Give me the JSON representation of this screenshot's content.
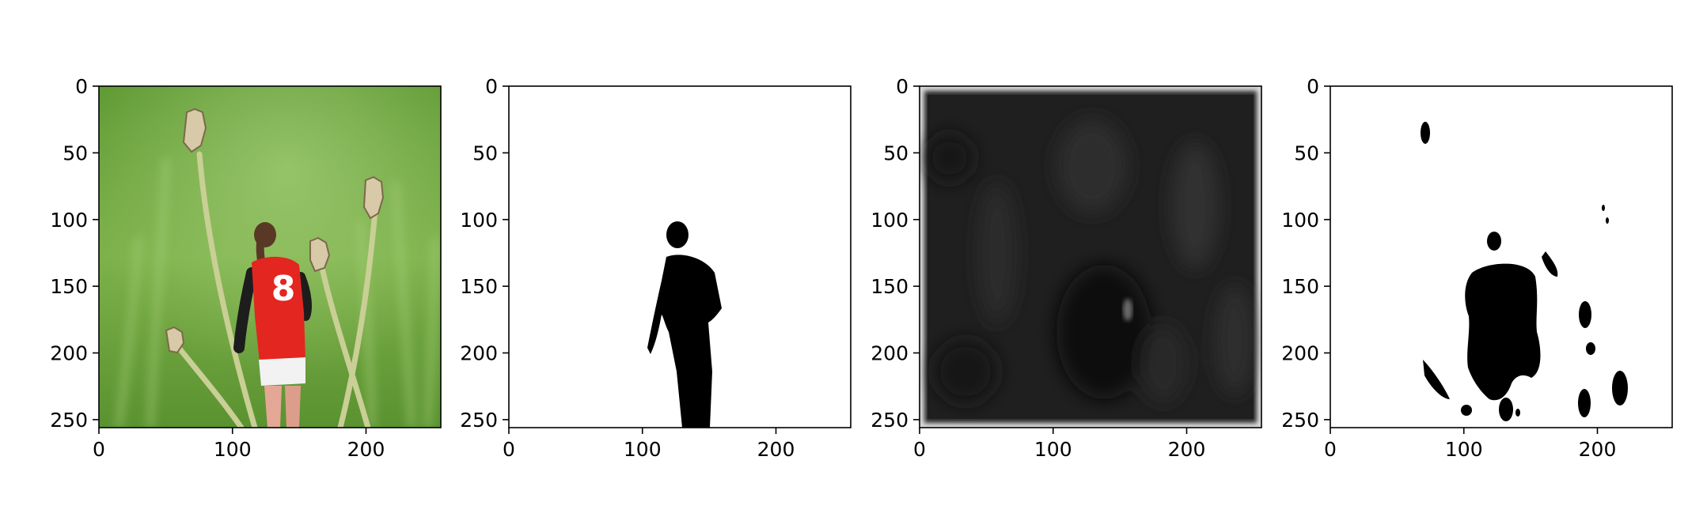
{
  "chart_data": [
    {
      "type": "heatmap",
      "content": "photo of a girl in a red number 8 shirt standing among dandelion stems on a green background",
      "jersey_number": "8",
      "xlim": [
        0,
        256
      ],
      "ylim": [
        256,
        0
      ],
      "x_ticks": [
        0,
        100,
        200
      ],
      "y_ticks": [
        0,
        50,
        100,
        150,
        200,
        250
      ],
      "grid": false
    },
    {
      "type": "heatmap",
      "content": "binary mask: black silhouette of the person on white",
      "xlim": [
        0,
        256
      ],
      "ylim": [
        256,
        0
      ],
      "x_ticks": [
        0,
        100,
        200
      ],
      "y_ticks": [
        0,
        50,
        100,
        150,
        200,
        250
      ],
      "grid": false
    },
    {
      "type": "heatmap",
      "content": "dark grayscale prediction map with bright border",
      "xlim": [
        0,
        256
      ],
      "ylim": [
        256,
        0
      ],
      "x_ticks": [
        0,
        100,
        200
      ],
      "y_ticks": [
        0,
        50,
        100,
        150,
        200,
        250
      ],
      "grid": false
    },
    {
      "type": "heatmap",
      "content": "thresholded binary map: black blobs on white",
      "xlim": [
        0,
        256
      ],
      "ylim": [
        256,
        0
      ],
      "x_ticks": [
        0,
        100,
        200
      ],
      "y_ticks": [
        0,
        50,
        100,
        150,
        200,
        250
      ],
      "grid": false
    }
  ],
  "colors": {
    "grass_dark": "#4f8a2c",
    "grass_light": "#8cbf5c",
    "shirt_red": "#e3261f",
    "mask_black": "#000000",
    "background": "#ffffff",
    "map_dark": "#1e1e1e",
    "map_border": "#d9d9d9"
  }
}
